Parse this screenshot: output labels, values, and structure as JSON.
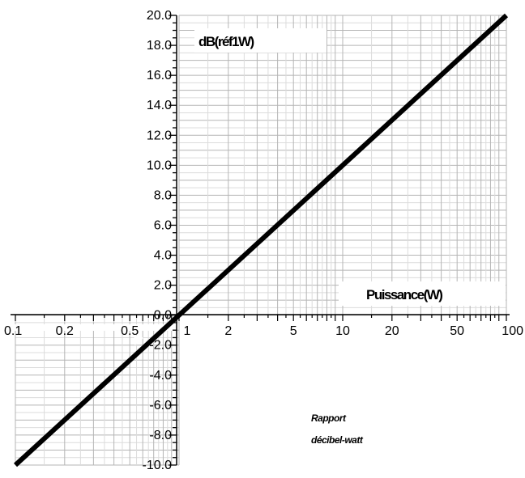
{
  "chart_data": {
    "type": "line",
    "ylabel": "dB(réf1W)",
    "xlabel": "Puissance(W)",
    "caption": [
      "Rapport",
      "décibel-watt"
    ],
    "x_scale": "log",
    "xlim": [
      0.1,
      100
    ],
    "ylim": [
      -10,
      20
    ],
    "x_ticks": [
      "0.1",
      "0.2",
      "0.5",
      "1",
      "2",
      "5",
      "10",
      "20",
      "50",
      "100"
    ],
    "y_ticks": [
      "20.0",
      "18.0",
      "16.0",
      "14.0",
      "12.0",
      "10.0",
      "8.0",
      "6.0",
      "4.0",
      "2.0",
      "0.0",
      "-2.0",
      "-4.0",
      "-6.0",
      "-8.0",
      "-10.0"
    ],
    "grid": true,
    "series": [
      {
        "x": [
          0.1,
          100
        ],
        "y": [
          -10,
          20
        ]
      }
    ]
  }
}
